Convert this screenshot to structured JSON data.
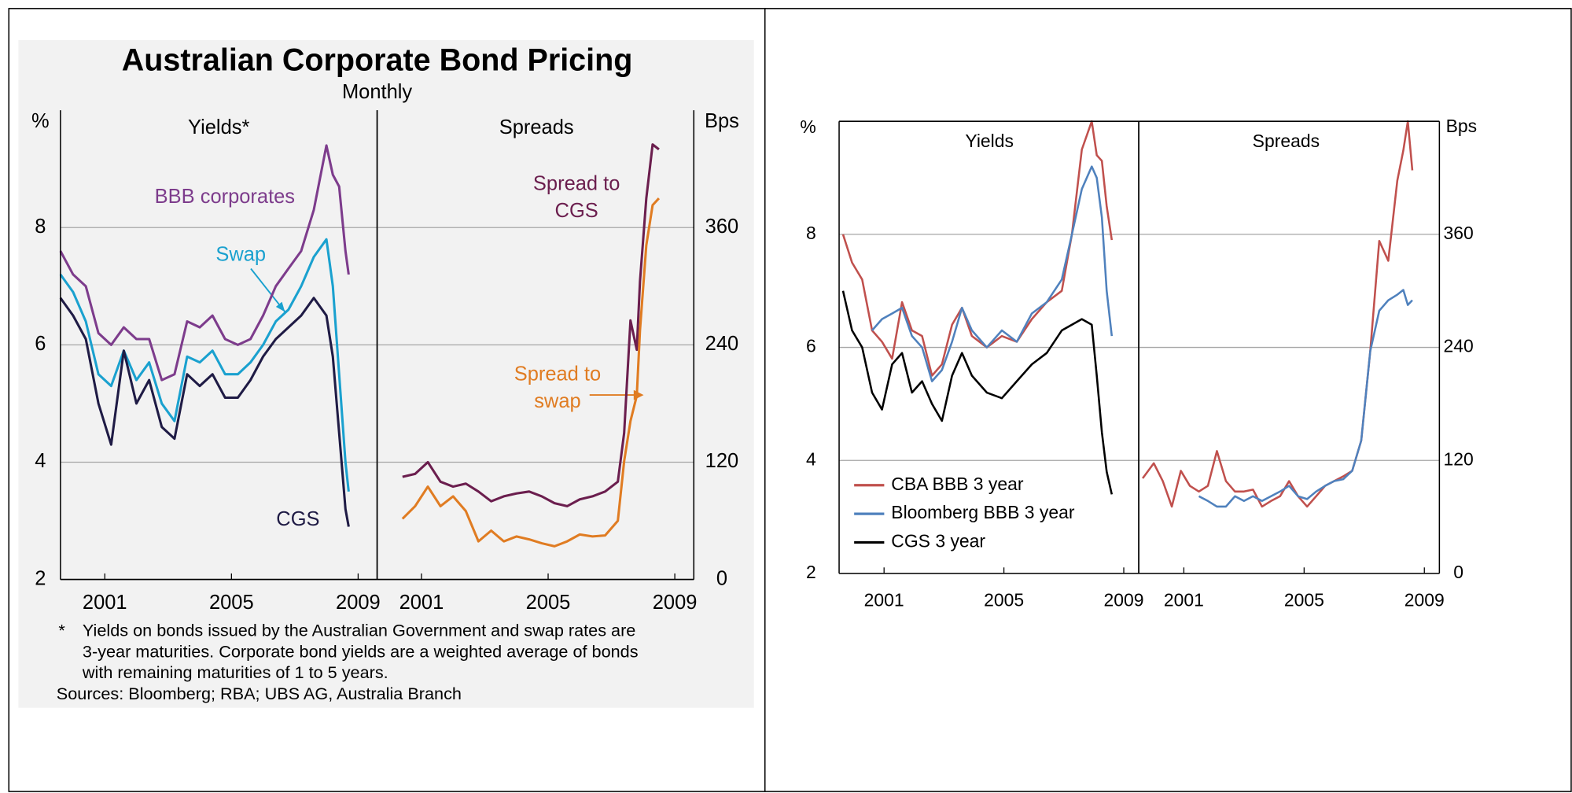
{
  "chart_data": [
    {
      "type": "line",
      "title": "Australian Corporate Bond Pricing",
      "subtitle": "Monthly",
      "panel_title": "Yields*",
      "y_label": "%",
      "note_marker": "*",
      "notes": [
        "Yields on bonds issued by the Australian Government and swap rates are",
        "3-year maturities. Corporate bond yields are a weighted average of bonds",
        "with remaining maturities of 1 to 5 years."
      ],
      "sources": "Sources: Bloomberg; RBA; UBS AG, Australia Branch",
      "x": [
        1999.6,
        2000.0,
        2000.4,
        2000.8,
        2001.2,
        2001.6,
        2002.0,
        2002.4,
        2002.8,
        2003.2,
        2003.6,
        2004.0,
        2004.4,
        2004.8,
        2005.2,
        2005.6,
        2006.0,
        2006.4,
        2006.8,
        2007.2,
        2007.6,
        2008.0,
        2008.2,
        2008.4,
        2008.6,
        2008.7
      ],
      "series": [
        {
          "name": "BBB corporates",
          "color": "#7d3c8c",
          "values": [
            7.6,
            7.2,
            7.0,
            6.2,
            6.0,
            6.3,
            6.1,
            6.1,
            5.4,
            5.5,
            6.4,
            6.3,
            6.5,
            6.1,
            6.0,
            6.1,
            6.5,
            7.0,
            7.3,
            7.6,
            8.3,
            9.4,
            8.9,
            8.7,
            7.6,
            7.2
          ]
        },
        {
          "name": "Swap",
          "color": "#1aa1cf",
          "values": [
            7.2,
            6.9,
            6.4,
            5.5,
            5.3,
            5.9,
            5.4,
            5.7,
            5.0,
            4.7,
            5.8,
            5.7,
            5.9,
            5.5,
            5.5,
            5.7,
            6.0,
            6.4,
            6.6,
            7.0,
            7.5,
            7.8,
            7.0,
            5.5,
            4.0,
            3.5
          ]
        },
        {
          "name": "CGS",
          "color": "#1f1b45",
          "values": [
            6.8,
            6.5,
            6.1,
            5.0,
            4.3,
            5.9,
            5.0,
            5.4,
            4.6,
            4.4,
            5.5,
            5.3,
            5.5,
            5.1,
            5.1,
            5.4,
            5.8,
            6.1,
            6.3,
            6.5,
            6.8,
            6.5,
            5.8,
            4.5,
            3.2,
            2.9
          ]
        }
      ],
      "xlim": [
        1999.6,
        2009.6
      ],
      "xticks": [
        2001,
        2005,
        2009
      ],
      "ylim": [
        2,
        10
      ],
      "yticks": [
        2,
        4,
        6,
        8
      ],
      "grid": true
    },
    {
      "type": "line",
      "panel_title": "Spreads",
      "y_label": "Bps",
      "x": [
        2000.4,
        2000.8,
        2001.2,
        2001.6,
        2002.0,
        2002.4,
        2002.8,
        2003.2,
        2003.6,
        2004.0,
        2004.4,
        2004.8,
        2005.2,
        2005.6,
        2006.0,
        2006.4,
        2006.8,
        2007.2,
        2007.4,
        2007.6,
        2007.8,
        2007.9,
        2008.1,
        2008.3,
        2008.5
      ],
      "series": [
        {
          "name": "Spread to CGS",
          "color": "#6b1e4e",
          "values": [
            105,
            108,
            120,
            100,
            95,
            98,
            90,
            80,
            85,
            88,
            90,
            85,
            78,
            75,
            82,
            85,
            90,
            100,
            150,
            265,
            235,
            305,
            390,
            445,
            440
          ]
        },
        {
          "name": "Spread to swap",
          "color": "#e07c22",
          "values": [
            62,
            75,
            95,
            75,
            85,
            70,
            39,
            50,
            39,
            44,
            41,
            37,
            34,
            39,
            46,
            44,
            45,
            60,
            121,
            162,
            188,
            255,
            342,
            383,
            390
          ]
        }
      ],
      "xlim": [
        1999.6,
        2009.6
      ],
      "xticks": [
        2001,
        2005,
        2009
      ],
      "ylim": [
        0,
        480
      ],
      "yticks": [
        0,
        120,
        240,
        360
      ],
      "grid": true
    },
    {
      "type": "line",
      "panel_title": "Yields",
      "y_label": "%",
      "legend": "lower left",
      "x": [
        1999.63,
        1999.93,
        2000.27,
        2000.6,
        2000.93,
        2001.27,
        2001.6,
        2001.93,
        2002.27,
        2002.6,
        2002.93,
        2003.27,
        2003.6,
        2003.93,
        2004.43,
        2004.93,
        2005.43,
        2005.93,
        2006.43,
        2006.93,
        2007.27,
        2007.6,
        2007.93,
        2008.1,
        2008.27,
        2008.43,
        2008.6
      ],
      "series": [
        {
          "name": "CBA BBB 3 year",
          "color": "#c0504d",
          "values": [
            8.0,
            7.5,
            7.2,
            6.3,
            6.1,
            5.8,
            6.8,
            6.3,
            6.2,
            5.5,
            5.7,
            6.4,
            6.7,
            6.2,
            6.0,
            6.2,
            6.1,
            6.5,
            6.8,
            7.0,
            8.0,
            9.5,
            10.0,
            9.4,
            9.3,
            8.5,
            7.9
          ]
        },
        {
          "name": "Bloomberg BBB 3 year",
          "color": "#4f81bd",
          "values": [
            null,
            null,
            null,
            6.3,
            6.5,
            6.6,
            6.7,
            6.2,
            6.0,
            5.4,
            5.6,
            6.1,
            6.7,
            6.3,
            6.0,
            6.3,
            6.1,
            6.6,
            6.8,
            7.2,
            8.0,
            8.8,
            9.2,
            9.0,
            8.3,
            7.0,
            6.2
          ]
        },
        {
          "name": "CGS 3 year",
          "color": "#000000",
          "values": [
            7.0,
            6.3,
            6.0,
            5.2,
            4.9,
            5.7,
            5.9,
            5.2,
            5.4,
            5.0,
            4.7,
            5.5,
            5.9,
            5.5,
            5.2,
            5.1,
            5.4,
            5.7,
            5.9,
            6.3,
            6.4,
            6.5,
            6.4,
            5.5,
            4.5,
            3.8,
            3.4
          ]
        }
      ],
      "xlim": [
        1999.5,
        2009.5
      ],
      "xticks": [
        2001,
        2005,
        2009
      ],
      "ylim": [
        2,
        10
      ],
      "yticks": [
        2,
        4,
        6,
        8
      ],
      "grid": true
    },
    {
      "type": "line",
      "panel_title": "Spreads",
      "y_label": "Bps",
      "x": [
        1999.63,
        2000.0,
        2000.3,
        2000.6,
        2000.9,
        2001.2,
        2001.5,
        2001.8,
        2002.1,
        2002.4,
        2002.7,
        2003.0,
        2003.3,
        2003.6,
        2003.9,
        2004.2,
        2004.5,
        2004.8,
        2005.1,
        2005.4,
        2005.7,
        2006.0,
        2006.3,
        2006.6,
        2006.9,
        2007.2,
        2007.5,
        2007.8,
        2008.1,
        2008.3,
        2008.45,
        2008.6
      ],
      "series": [
        {
          "color": "#c0504d",
          "values": [
            101,
            117,
            98,
            71,
            109,
            93,
            87,
            93,
            130,
            98,
            87,
            87,
            89,
            71,
            77,
            82,
            98,
            82,
            71,
            82,
            93,
            98,
            103,
            109,
            141,
            236,
            353,
            332,
            417,
            449,
            480,
            428
          ]
        },
        {
          "color": "#4f81bd",
          "values": [
            null,
            null,
            null,
            null,
            null,
            null,
            82,
            77,
            71,
            71,
            82,
            77,
            82,
            77,
            82,
            87,
            93,
            82,
            79,
            87,
            93,
            98,
            100,
            109,
            141,
            236,
            279,
            290,
            296,
            301,
            285,
            290
          ]
        }
      ],
      "xlim": [
        1999.5,
        2009.5
      ],
      "xticks": [
        2001,
        2005,
        2009
      ],
      "ylim": [
        0,
        480
      ],
      "yticks": [
        0,
        120,
        240,
        360
      ],
      "grid": true
    }
  ]
}
